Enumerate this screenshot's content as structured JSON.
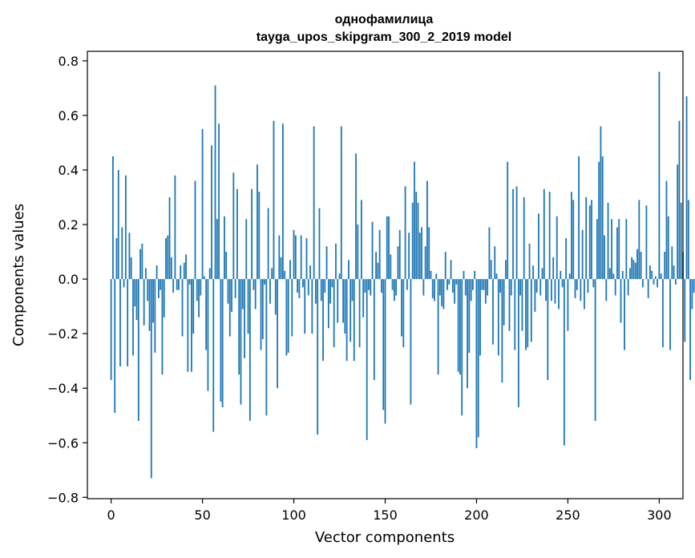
{
  "chart_data": {
    "type": "bar",
    "title_line1": "однофамилица",
    "title_line2": "tayga_upos_skipgram_300_2_2019 model",
    "xlabel": "Vector components",
    "ylabel": "Components values",
    "xlim": [
      -13,
      313
    ],
    "ylim": [
      -0.805,
      0.835
    ],
    "xticks": [
      0,
      50,
      100,
      150,
      200,
      250,
      300
    ],
    "yticks": [
      -0.8,
      -0.6,
      -0.4,
      -0.2,
      0.0,
      0.2,
      0.4,
      0.6,
      0.8
    ],
    "ytick_labels": [
      "−0.8",
      "−0.6",
      "−0.4",
      "−0.2",
      "0.0",
      "0.2",
      "0.4",
      "0.6",
      "0.8"
    ],
    "xtick_labels": [
      "0",
      "50",
      "100",
      "150",
      "200",
      "250",
      "300"
    ],
    "bar_color": "#1f77b4",
    "grid": false,
    "values": [
      -0.37,
      0.45,
      -0.49,
      0.15,
      0.4,
      -0.32,
      0.19,
      -0.03,
      0.38,
      -0.32,
      0.17,
      0.08,
      -0.28,
      -0.1,
      -0.15,
      -0.52,
      0.11,
      0.13,
      -0.17,
      0.04,
      -0.08,
      -0.19,
      -0.73,
      -0.16,
      -0.27,
      0.05,
      -0.07,
      -0.04,
      -0.35,
      -0.14,
      0.15,
      0.16,
      0.3,
      0.08,
      -0.05,
      0.38,
      -0.04,
      -0.04,
      0.05,
      -0.21,
      0.06,
      0.09,
      -0.34,
      -0.02,
      -0.34,
      -0.2,
      0.36,
      -0.08,
      -0.14,
      -0.06,
      0.55,
      0.01,
      -0.26,
      -0.41,
      0.04,
      0.49,
      -0.56,
      0.71,
      0.22,
      0.57,
      -0.45,
      -0.47,
      0.23,
      0.1,
      -0.09,
      -0.21,
      -0.12,
      0.39,
      -0.07,
      0.33,
      -0.35,
      -0.46,
      -0.11,
      -0.29,
      0.22,
      -0.2,
      -0.52,
      0.33,
      -0.04,
      -0.11,
      0.42,
      0.32,
      -0.26,
      -0.22,
      -0.02,
      -0.5,
      0.26,
      -0.09,
      0.04,
      0.58,
      -0.13,
      -0.4,
      0.16,
      0.08,
      0.57,
      0.03,
      -0.28,
      -0.27,
      0.07,
      -0.21,
      0.18,
      0.16,
      -0.05,
      -0.07,
      0.16,
      -0.03,
      -0.2,
      0.15,
      -0.06,
      0.05,
      -0.2,
      0.56,
      -0.09,
      -0.57,
      0.26,
      -0.08,
      -0.3,
      -0.05,
      0.12,
      -0.18,
      -0.09,
      -0.03,
      -0.25,
      0.13,
      -0.16,
      0.02,
      0.56,
      -0.16,
      -0.2,
      -0.3,
      0.07,
      -0.23,
      -0.08,
      -0.3,
      0.46,
      0.2,
      -0.25,
      0.29,
      -0.14,
      -0.05,
      -0.59,
      -0.04,
      -0.06,
      0.21,
      -0.37,
      0.1,
      0.06,
      0.18,
      -0.05,
      -0.48,
      -0.53,
      0.23,
      0.23,
      0.09,
      -0.04,
      -0.08,
      -0.06,
      0.12,
      0.18,
      -0.21,
      -0.25,
      0.34,
      -0.04,
      0.17,
      -0.46,
      0.28,
      0.43,
      0.32,
      0.28,
      0.17,
      0.19,
      -0.06,
      0.12,
      0.36,
      0.19,
      0.03,
      -0.07,
      -0.08,
      0.02,
      -0.35,
      -0.06,
      -0.1,
      -0.11,
      0.1,
      -0.04,
      -0.02,
      0.07,
      -0.05,
      -0.09,
      -0.02,
      -0.34,
      -0.35,
      -0.5,
      0.03,
      -0.06,
      -0.4,
      -0.27,
      -0.08,
      -0.04,
      0.03,
      -0.62,
      -0.58,
      -0.28,
      -0.04,
      -0.04,
      -0.09,
      -0.06,
      0.19,
      0.07,
      -0.24,
      0.12,
      0.02,
      -0.28,
      -0.05,
      -0.38,
      -0.17,
      0.07,
      0.43,
      -0.19,
      -0.06,
      0.33,
      -0.26,
      0.34,
      -0.47,
      -0.06,
      -0.19,
      0.3,
      -0.26,
      -0.25,
      0.13,
      -0.23,
      0.05,
      -0.12,
      -0.05,
      0.24,
      -0.06,
      0.04,
      0.33,
      -0.08,
      -0.37,
      0.32,
      -0.08,
      0.08,
      -0.09,
      0.23,
      -0.11,
      0.03,
      -0.03,
      -0.61,
      0.15,
      -0.19,
      0.02,
      0.32,
      0.29,
      -0.07,
      -0.04,
      0.45,
      -0.08,
      0.18,
      -0.11,
      0.3,
      -0.05,
      0.27,
      0.29,
      -0.03,
      -0.52,
      0.22,
      0.43,
      0.56,
      0.45,
      0.16,
      -0.08,
      0.28,
      0.04,
      0.22,
      0.02,
      -0.06,
      0.19,
      0.22,
      -0.16,
      0.03,
      -0.26,
      0.22,
      -0.06,
      0.04,
      0.08,
      0.07,
      0.06,
      0.11,
      0.29,
      0.1,
      -0.03,
      0.0,
      0.27,
      -0.07,
      0.05,
      0.03,
      -0.02,
      0.01,
      -0.03,
      0.76,
      0.02,
      -0.25,
      0.1,
      0.36,
      0.23,
      -0.26,
      0.12,
      0.05,
      -0.02,
      0.42,
      0.58,
      0.28,
      0.1,
      -0.23,
      0.67,
      0.29,
      -0.37,
      -0.11,
      -0.05
    ]
  }
}
